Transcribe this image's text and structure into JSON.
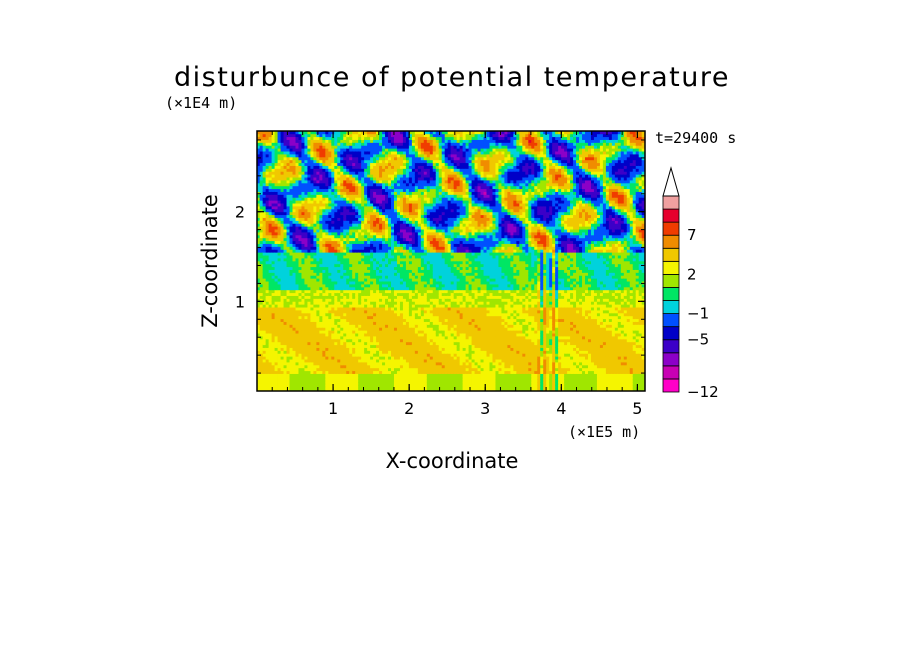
{
  "chart_data": {
    "type": "heatmap",
    "title": "disturbunce of potential temperature",
    "xlabel": "X-coordinate",
    "ylabel": "Z-coordinate",
    "x_unit": "(×1E5 m)",
    "y_unit": "(×1E4 m)",
    "time_label": "t=29400 s",
    "xlim": [
      0,
      5.1
    ],
    "ylim": [
      0,
      2.9
    ],
    "x_ticks": [
      1,
      2,
      3,
      4,
      5
    ],
    "y_ticks": [
      1,
      2
    ],
    "x_tick_labels": [
      "1",
      "2",
      "3",
      "4",
      "5"
    ],
    "y_tick_labels": [
      "1",
      "2"
    ],
    "colorbar": {
      "levels": [
        -12,
        -11,
        -9,
        -7,
        -5,
        -3,
        -1,
        0,
        1,
        2,
        3,
        5,
        7,
        9,
        11
      ],
      "labeled_levels": [
        "-12",
        "-5",
        "-1",
        "2",
        "7"
      ],
      "colors": [
        "#ff00c8",
        "#c800b4",
        "#8c00c8",
        "#3c00c8",
        "#0000c8",
        "#0050ff",
        "#00d2dc",
        "#00e664",
        "#a0e600",
        "#f5f500",
        "#f0c800",
        "#f08c00",
        "#f03c00",
        "#e6002d",
        "#f0a0a0"
      ],
      "overflow_arrow": "top"
    },
    "bands": [
      {
        "z_range": [
          0.0,
          0.18
        ],
        "description_level": 2
      },
      {
        "z_range": [
          0.18,
          0.95
        ],
        "description_level": 3
      },
      {
        "z_range": [
          0.95,
          1.1
        ],
        "description_level": 2
      },
      {
        "z_range": [
          1.1,
          1.55
        ],
        "description_level": 0
      },
      {
        "z_range": [
          1.55,
          2.9
        ],
        "description_level": "mixed -5..7"
      }
    ]
  }
}
